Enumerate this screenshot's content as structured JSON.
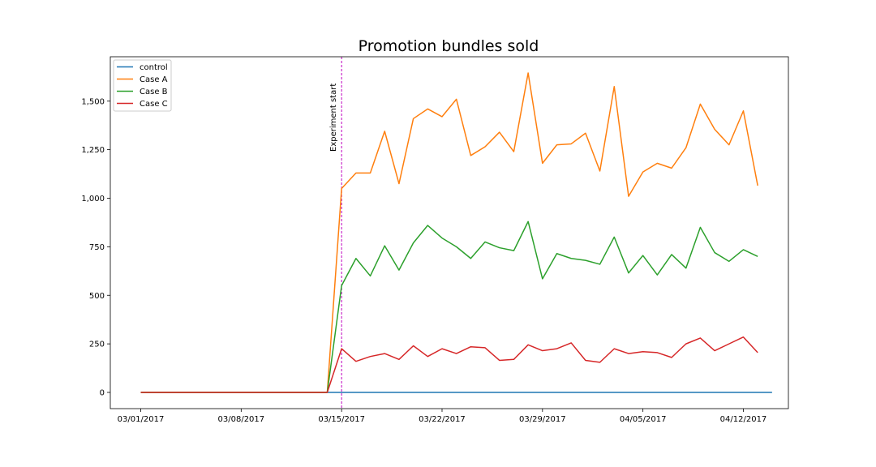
{
  "chart_data": {
    "type": "line",
    "title": "Promotion bundles sold",
    "xlabel": "",
    "ylabel": "",
    "x_start": "2017-03-01",
    "x_end": "2017-04-13",
    "x_ticks": [
      "03/01/2017",
      "03/08/2017",
      "03/15/2017",
      "03/22/2017",
      "03/29/2017",
      "04/05/2017",
      "04/12/2017"
    ],
    "ylim": [
      -85,
      1735
    ],
    "y_ticks": [
      0,
      250,
      500,
      750,
      1000,
      1250,
      1500
    ],
    "y_tick_labels": [
      "0",
      "250",
      "500",
      "750",
      "1,000",
      "1,250",
      "1,500"
    ],
    "grid": false,
    "legend_position": "top-left",
    "annotation": {
      "text": "Experiment start",
      "x": "2017-03-15",
      "line_color": "#bf00bf"
    },
    "series": [
      {
        "name": "control",
        "color": "#1f77b4",
        "values": [
          0,
          0,
          0,
          0,
          0,
          0,
          0,
          0,
          0,
          0,
          0,
          0,
          0,
          0,
          0,
          0,
          0,
          0,
          0,
          0,
          0,
          0,
          0,
          0,
          0,
          0,
          0,
          0,
          0,
          0,
          0,
          0,
          0,
          0,
          0,
          0,
          0,
          0,
          0,
          0,
          0,
          0,
          0,
          0,
          0
        ]
      },
      {
        "name": "Case A",
        "color": "#ff7f0e",
        "values": [
          0,
          0,
          0,
          0,
          0,
          0,
          0,
          0,
          0,
          0,
          0,
          0,
          0,
          0,
          1050,
          1130,
          1130,
          1345,
          1075,
          1410,
          1460,
          1420,
          1510,
          1220,
          1265,
          1340,
          1240,
          1645,
          1180,
          1275,
          1280,
          1335,
          1140,
          1575,
          1010,
          1135,
          1180,
          1155,
          1260,
          1485,
          1355,
          1275,
          1450,
          1065
        ]
      },
      {
        "name": "Case B",
        "color": "#2ca02c",
        "values": [
          0,
          0,
          0,
          0,
          0,
          0,
          0,
          0,
          0,
          0,
          0,
          0,
          0,
          0,
          550,
          690,
          600,
          755,
          630,
          770,
          860,
          795,
          750,
          690,
          775,
          745,
          730,
          880,
          585,
          715,
          690,
          680,
          660,
          800,
          615,
          705,
          605,
          710,
          640,
          850,
          720,
          675,
          735,
          700
        ]
      },
      {
        "name": "Case C",
        "color": "#d62728",
        "values": [
          0,
          0,
          0,
          0,
          0,
          0,
          0,
          0,
          0,
          0,
          0,
          0,
          0,
          0,
          225,
          160,
          185,
          200,
          170,
          240,
          185,
          225,
          200,
          235,
          230,
          165,
          170,
          245,
          215,
          225,
          255,
          165,
          155,
          225,
          200,
          210,
          205,
          180,
          250,
          280,
          215,
          250,
          285,
          205
        ]
      }
    ]
  }
}
